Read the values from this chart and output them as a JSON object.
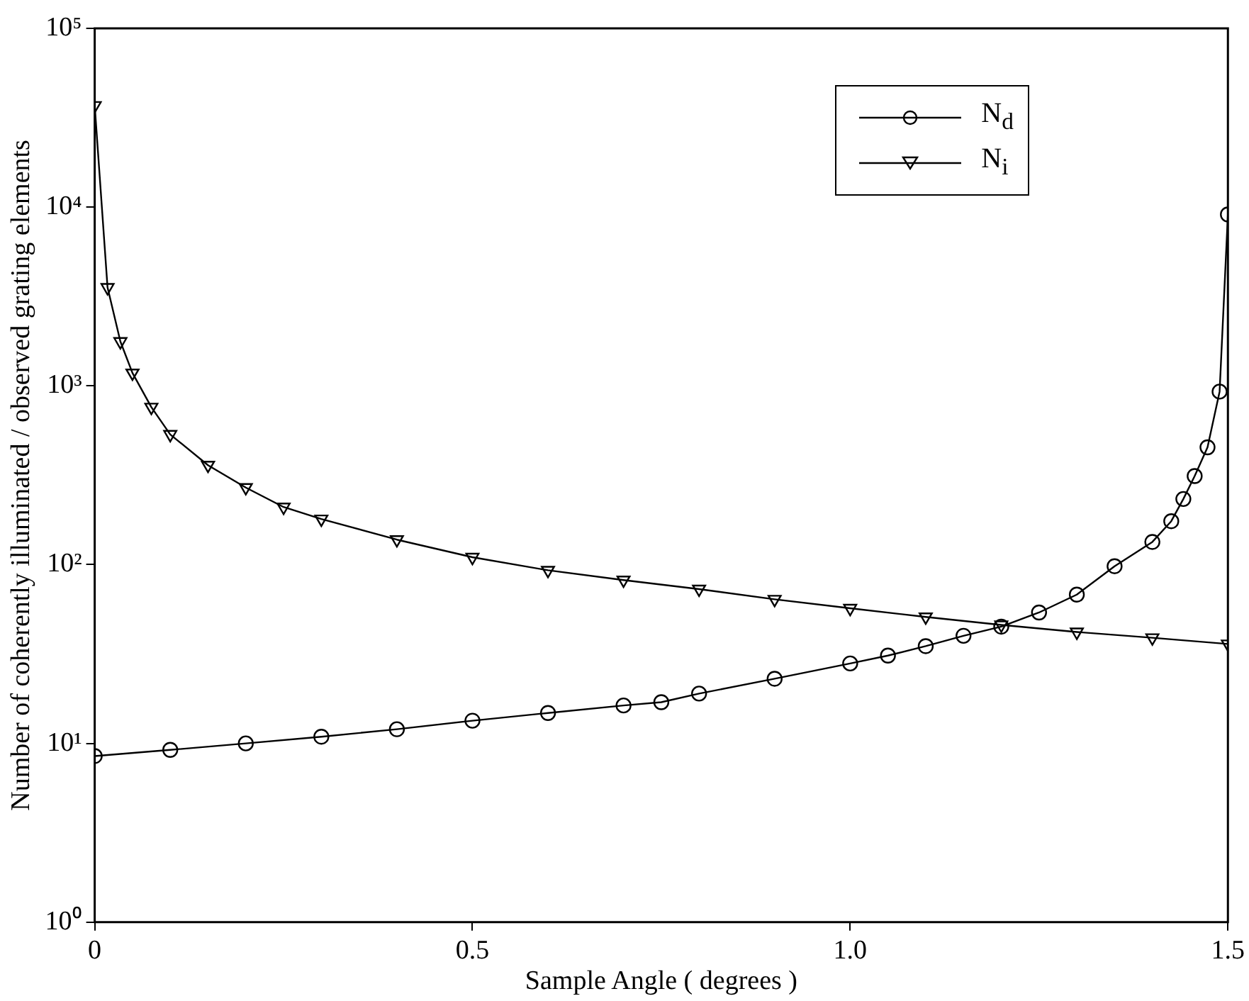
{
  "chart_data": {
    "type": "line",
    "xlabel": "Sample Angle ( degrees )",
    "ylabel": "Number of coherently illuminated / observed grating elements",
    "log": "y",
    "xlim": [
      0,
      1.5
    ],
    "xticks": [
      0,
      0.5,
      {
        "value": 1,
        "label": "1.0"
      },
      1.5
    ],
    "ylim": [
      1,
      100000
    ],
    "yticks": [
      {
        "value": 1,
        "label": "10⁰"
      },
      {
        "value": 10,
        "label": "10¹"
      },
      {
        "value": 100,
        "label": "10²"
      },
      {
        "value": 1000,
        "label": "10³"
      },
      {
        "value": 10000,
        "label": "10⁴"
      },
      {
        "value": 100000,
        "label": "10⁵"
      }
    ],
    "grid": false,
    "legend": "top right",
    "series": [
      {
        "name": "N$_{d}$",
        "color": "#000000",
        "marker": "circle",
        "x": [
          0,
          0.1,
          0.2,
          0.3,
          0.4,
          0.5,
          0.6,
          0.7,
          0.75,
          0.8,
          0.9,
          1.0,
          1.05,
          1.1,
          1.15,
          1.2,
          1.25,
          1.3,
          1.35,
          1.4,
          1.425,
          1.441,
          1.456,
          1.473,
          1.489,
          1.5
        ],
        "values": [
          8.5,
          9.2,
          10,
          10.9,
          12,
          13.4,
          14.8,
          16.3,
          17,
          19,
          23,
          28,
          31,
          35,
          40,
          45,
          54,
          68,
          98,
          134,
          175,
          233,
          313,
          453,
          929,
          9100
        ]
      },
      {
        "name": "N$_{i}$",
        "color": "#000000",
        "marker": "triangle",
        "x": [
          0,
          0.017,
          0.034,
          0.05,
          0.075,
          0.1,
          0.15,
          0.2,
          0.25,
          0.3,
          0.4,
          0.5,
          0.6,
          0.7,
          0.8,
          0.9,
          1.0,
          1.1,
          1.2,
          1.3,
          1.4,
          1.5
        ],
        "values": [
          37000,
          3550,
          1770,
          1180,
          760,
          535,
          360,
          270,
          210,
          180,
          138,
          110,
          93,
          82,
          73,
          64,
          57,
          51,
          46,
          42,
          39,
          36
        ]
      }
    ]
  }
}
